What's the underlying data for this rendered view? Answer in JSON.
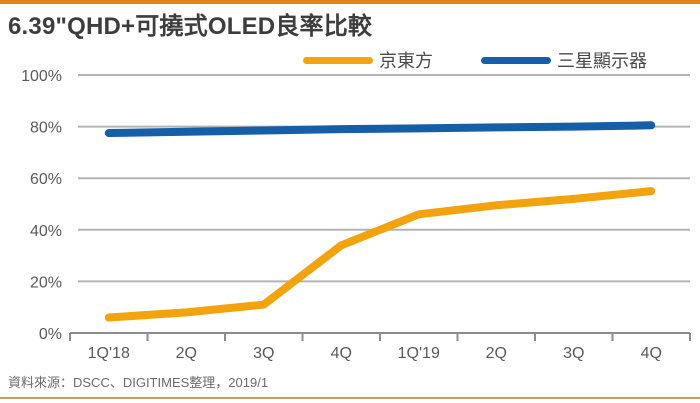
{
  "page": {
    "title": "6.39\"QHD+可撓式OLED良率比較",
    "source_note": "資料來源：DSCC、DIGITIMES整理，2019/1"
  },
  "legend": [
    {
      "label": "京東方",
      "color": "#F2A30D"
    },
    {
      "label": "三星顯示器",
      "color": "#155FA8"
    }
  ],
  "colors": {
    "accent_bar": "#E2861C",
    "bottom_line": "#C9A35B",
    "gridline": "#B3B3B3",
    "axis": "#8C8C8C",
    "tick_label": "#595959",
    "boe_line": "#F2A30D",
    "samsung_line": "#155FA8"
  },
  "chart_data": {
    "type": "line",
    "title": "6.39\"QHD+可撓式OLED良率比較",
    "categories": [
      "1Q'18",
      "2Q",
      "3Q",
      "4Q",
      "1Q'19",
      "2Q",
      "3Q",
      "4Q"
    ],
    "series": [
      {
        "name": "京東方",
        "color": "#F2A30D",
        "values": [
          6,
          8,
          11,
          34,
          46,
          49.5,
          52,
          55
        ]
      },
      {
        "name": "三星顯示器",
        "color": "#155FA8",
        "values": [
          77.5,
          78,
          78.5,
          79,
          79.3,
          79.7,
          80,
          80.5
        ]
      }
    ],
    "xlabel": "",
    "ylabel": "",
    "ylim": [
      0,
      100
    ],
    "y_ticks": [
      0,
      20,
      40,
      60,
      80,
      100
    ],
    "y_tick_suffix": "%",
    "grid": true,
    "legend_position": "top"
  }
}
